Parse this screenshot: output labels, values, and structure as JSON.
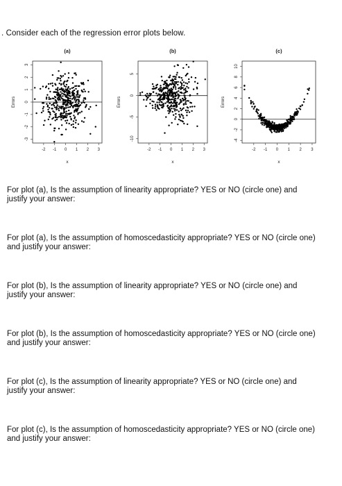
{
  "document": {
    "intro": ". Consider each of the regression error plots below.",
    "questions": [
      "For plot (a), Is the assumption of linearity appropriate? YES or NO (circle one) and justify your answer:",
      "For plot (a), Is the assumption of homoscedasticity appropriate? YES or NO (circle one) and justify your answer:",
      "For plot (b), Is the assumption of linearity appropriate? YES or NO (circle one) and justify your answer:",
      "For plot (b), Is the assumption of homoscedasticity appropriate? YES or NO (circle one) and justify your answer:",
      "For plot (c), Is the assumption of linearity appropriate? YES or NO (circle one) and justify your answer:",
      "For plot (c), Is the assumption of homoscedasticity appropriate? YES or NO (circle one) and justify your answer:"
    ]
  },
  "chart_data": [
    {
      "type": "scatter",
      "title": "(a)",
      "xlabel": "x",
      "ylabel": "Errors",
      "xticks": [
        "-2",
        "-1",
        "0",
        "1",
        "2",
        "3"
      ],
      "yticks": [
        "-3",
        "-2",
        "-1",
        "0",
        "1",
        "2",
        "3"
      ],
      "xlim": [
        -3,
        3.3
      ],
      "ylim": [
        -3.3,
        3.3
      ],
      "pattern": "random scatter centered on zero with constant spread",
      "reference_line_y": 0
    },
    {
      "type": "scatter",
      "title": "(b)",
      "xlabel": "x",
      "ylabel": "Errors",
      "xticks": [
        "-2",
        "-1",
        "0",
        "1",
        "2",
        "3"
      ],
      "yticks": [
        "-10",
        "-5",
        "0",
        "5"
      ],
      "xlim": [
        -3,
        3.3
      ],
      "ylim": [
        -11,
        8
      ],
      "pattern": "scatter centered on zero with spread increasing as x increases",
      "reference_line_y": 0
    },
    {
      "type": "scatter",
      "title": "(c)",
      "xlabel": "x",
      "ylabel": "Errors",
      "xticks": [
        "-2",
        "-1",
        "0",
        "1",
        "2",
        "3"
      ],
      "yticks": [
        "-4",
        "-2",
        "0",
        "2",
        "4",
        "6",
        "8",
        "10"
      ],
      "xlim": [
        -3,
        3.3
      ],
      "ylim": [
        -4.5,
        11
      ],
      "pattern": "U-shaped (quadratic) curved pattern",
      "reference_line_y": 0
    }
  ]
}
